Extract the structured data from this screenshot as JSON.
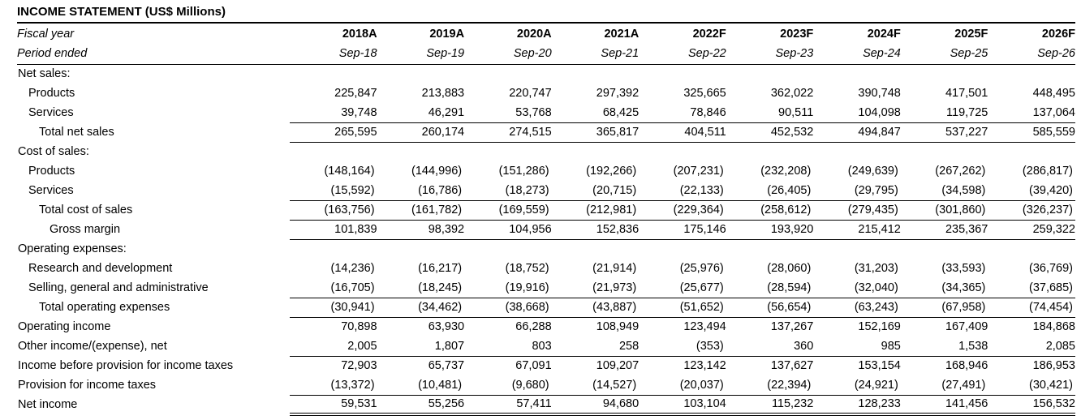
{
  "title": "INCOME STATEMENT (US$ Millions)",
  "header": {
    "fiscal_year_label": "Fiscal year",
    "period_ended_label": "Period ended",
    "years": [
      "2018A",
      "2019A",
      "2020A",
      "2021A",
      "2022F",
      "2023F",
      "2024F",
      "2025F",
      "2026F"
    ],
    "periods": [
      "Sep-18",
      "Sep-19",
      "Sep-20",
      "Sep-21",
      "Sep-22",
      "Sep-23",
      "Sep-24",
      "Sep-25",
      "Sep-26"
    ]
  },
  "rows": [
    {
      "label": "Net sales:",
      "indent": 0,
      "underline": "none",
      "values": []
    },
    {
      "label": "Products",
      "indent": 1,
      "underline": "none",
      "values": [
        "225,847",
        "213,883",
        "220,747",
        "297,392",
        "325,665",
        "362,022",
        "390,748",
        "417,501",
        "448,495"
      ]
    },
    {
      "label": "Services",
      "indent": 1,
      "underline": "single",
      "values": [
        "39,748",
        "46,291",
        "53,768",
        "68,425",
        "78,846",
        "90,511",
        "104,098",
        "119,725",
        "137,064"
      ]
    },
    {
      "label": "Total net sales",
      "indent": 2,
      "underline": "single",
      "values": [
        "265,595",
        "260,174",
        "274,515",
        "365,817",
        "404,511",
        "452,532",
        "494,847",
        "537,227",
        "585,559"
      ]
    },
    {
      "label": "Cost of sales:",
      "indent": 0,
      "underline": "none",
      "values": []
    },
    {
      "label": "Products",
      "indent": 1,
      "underline": "none",
      "values": [
        "(148,164)",
        "(144,996)",
        "(151,286)",
        "(192,266)",
        "(207,231)",
        "(232,208)",
        "(249,639)",
        "(267,262)",
        "(286,817)"
      ]
    },
    {
      "label": "Services",
      "indent": 1,
      "underline": "single",
      "values": [
        "(15,592)",
        "(16,786)",
        "(18,273)",
        "(20,715)",
        "(22,133)",
        "(26,405)",
        "(29,795)",
        "(34,598)",
        "(39,420)"
      ]
    },
    {
      "label": "Total cost of sales",
      "indent": 2,
      "underline": "single",
      "values": [
        "(163,756)",
        "(161,782)",
        "(169,559)",
        "(212,981)",
        "(229,364)",
        "(258,612)",
        "(279,435)",
        "(301,860)",
        "(326,237)"
      ]
    },
    {
      "label": "Gross margin",
      "indent": 3,
      "underline": "single",
      "values": [
        "101,839",
        "98,392",
        "104,956",
        "152,836",
        "175,146",
        "193,920",
        "215,412",
        "235,367",
        "259,322"
      ]
    },
    {
      "label": "Operating expenses:",
      "indent": 0,
      "underline": "none",
      "values": []
    },
    {
      "label": "Research and development",
      "indent": 1,
      "underline": "none",
      "values": [
        "(14,236)",
        "(16,217)",
        "(18,752)",
        "(21,914)",
        "(25,976)",
        "(28,060)",
        "(31,203)",
        "(33,593)",
        "(36,769)"
      ]
    },
    {
      "label": "Selling, general and administrative",
      "indent": 1,
      "underline": "single",
      "values": [
        "(16,705)",
        "(18,245)",
        "(19,916)",
        "(21,973)",
        "(25,677)",
        "(28,594)",
        "(32,040)",
        "(34,365)",
        "(37,685)"
      ]
    },
    {
      "label": "Total operating expenses",
      "indent": 2,
      "underline": "single",
      "values": [
        "(30,941)",
        "(34,462)",
        "(38,668)",
        "(43,887)",
        "(51,652)",
        "(56,654)",
        "(63,243)",
        "(67,958)",
        "(74,454)"
      ]
    },
    {
      "label": "Operating income",
      "indent": 0,
      "underline": "none",
      "values": [
        "70,898",
        "63,930",
        "66,288",
        "108,949",
        "123,494",
        "137,267",
        "152,169",
        "167,409",
        "184,868"
      ]
    },
    {
      "label": "Other income/(expense), net",
      "indent": 0,
      "underline": "single",
      "values": [
        "2,005",
        "1,807",
        "803",
        "258",
        "(353)",
        "360",
        "985",
        "1,538",
        "2,085"
      ]
    },
    {
      "label": "Income before provision for income taxes",
      "indent": 0,
      "underline": "none",
      "values": [
        "72,903",
        "65,737",
        "67,091",
        "109,207",
        "123,142",
        "137,627",
        "153,154",
        "168,946",
        "186,953"
      ]
    },
    {
      "label": "Provision for income taxes",
      "indent": 0,
      "underline": "single",
      "values": [
        "(13,372)",
        "(10,481)",
        "(9,680)",
        "(14,527)",
        "(20,037)",
        "(22,394)",
        "(24,921)",
        "(27,491)",
        "(30,421)"
      ]
    },
    {
      "label": "Net income",
      "indent": 0,
      "underline": "double",
      "values": [
        "59,531",
        "55,256",
        "57,411",
        "94,680",
        "103,104",
        "115,232",
        "128,233",
        "141,456",
        "156,532"
      ]
    }
  ]
}
